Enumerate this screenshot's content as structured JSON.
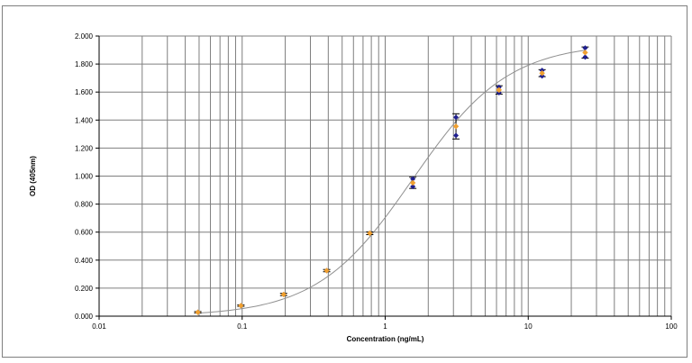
{
  "chart_data": {
    "type": "scatter",
    "x_scale": "log",
    "xlim": [
      0.01,
      100
    ],
    "ylim": [
      0.0,
      2.0
    ],
    "x_ticks": [
      "0.01",
      "0.1",
      "1",
      "10",
      "100"
    ],
    "y_ticks": [
      "0.000",
      "0.200",
      "0.400",
      "0.600",
      "0.800",
      "1.000",
      "1.200",
      "1.400",
      "1.600",
      "1.800",
      "2.000"
    ],
    "xlabel": "Concentration (ng/mL)",
    "ylabel": "OD (405nm)",
    "grid": true,
    "legend": "none",
    "colors": {
      "replicate": "#1f1f8f",
      "mean": "#f0a030",
      "fit": "#909090",
      "grid": "#7f7f7f"
    },
    "series": [
      {
        "role": "replicates",
        "points": [
          {
            "x": 0.049,
            "y": 0.028
          },
          {
            "x": 0.098,
            "y": 0.075
          },
          {
            "x": 0.195,
            "y": 0.155
          },
          {
            "x": 0.39,
            "y": 0.325
          },
          {
            "x": 0.78,
            "y": 0.592
          },
          {
            "x": 1.56,
            "y": 0.98
          },
          {
            "x": 1.56,
            "y": 0.925
          },
          {
            "x": 3.125,
            "y": 1.42
          },
          {
            "x": 3.125,
            "y": 1.29
          },
          {
            "x": 6.25,
            "y": 1.635
          },
          {
            "x": 6.25,
            "y": 1.595
          },
          {
            "x": 12.5,
            "y": 1.755
          },
          {
            "x": 12.5,
            "y": 1.715
          },
          {
            "x": 25,
            "y": 1.915
          },
          {
            "x": 25,
            "y": 1.85
          }
        ]
      },
      {
        "role": "mean",
        "points": [
          {
            "x": 0.049,
            "y": 0.028,
            "err": 0.005
          },
          {
            "x": 0.098,
            "y": 0.075,
            "err": 0.005
          },
          {
            "x": 0.195,
            "y": 0.155,
            "err": 0.008
          },
          {
            "x": 0.39,
            "y": 0.325,
            "err": 0.008
          },
          {
            "x": 0.78,
            "y": 0.592,
            "err": 0.01
          },
          {
            "x": 1.56,
            "y": 0.952,
            "err": 0.04
          },
          {
            "x": 3.125,
            "y": 1.355,
            "err": 0.09
          },
          {
            "x": 6.25,
            "y": 1.615,
            "err": 0.03
          },
          {
            "x": 12.5,
            "y": 1.735,
            "err": 0.025
          },
          {
            "x": 25,
            "y": 1.882,
            "err": 0.04
          }
        ]
      }
    ],
    "fit_curve": {
      "model": "4PL",
      "A": 0.0,
      "D": 1.95,
      "C": 1.55,
      "B": 1.3,
      "x_range": [
        0.049,
        25
      ]
    }
  }
}
